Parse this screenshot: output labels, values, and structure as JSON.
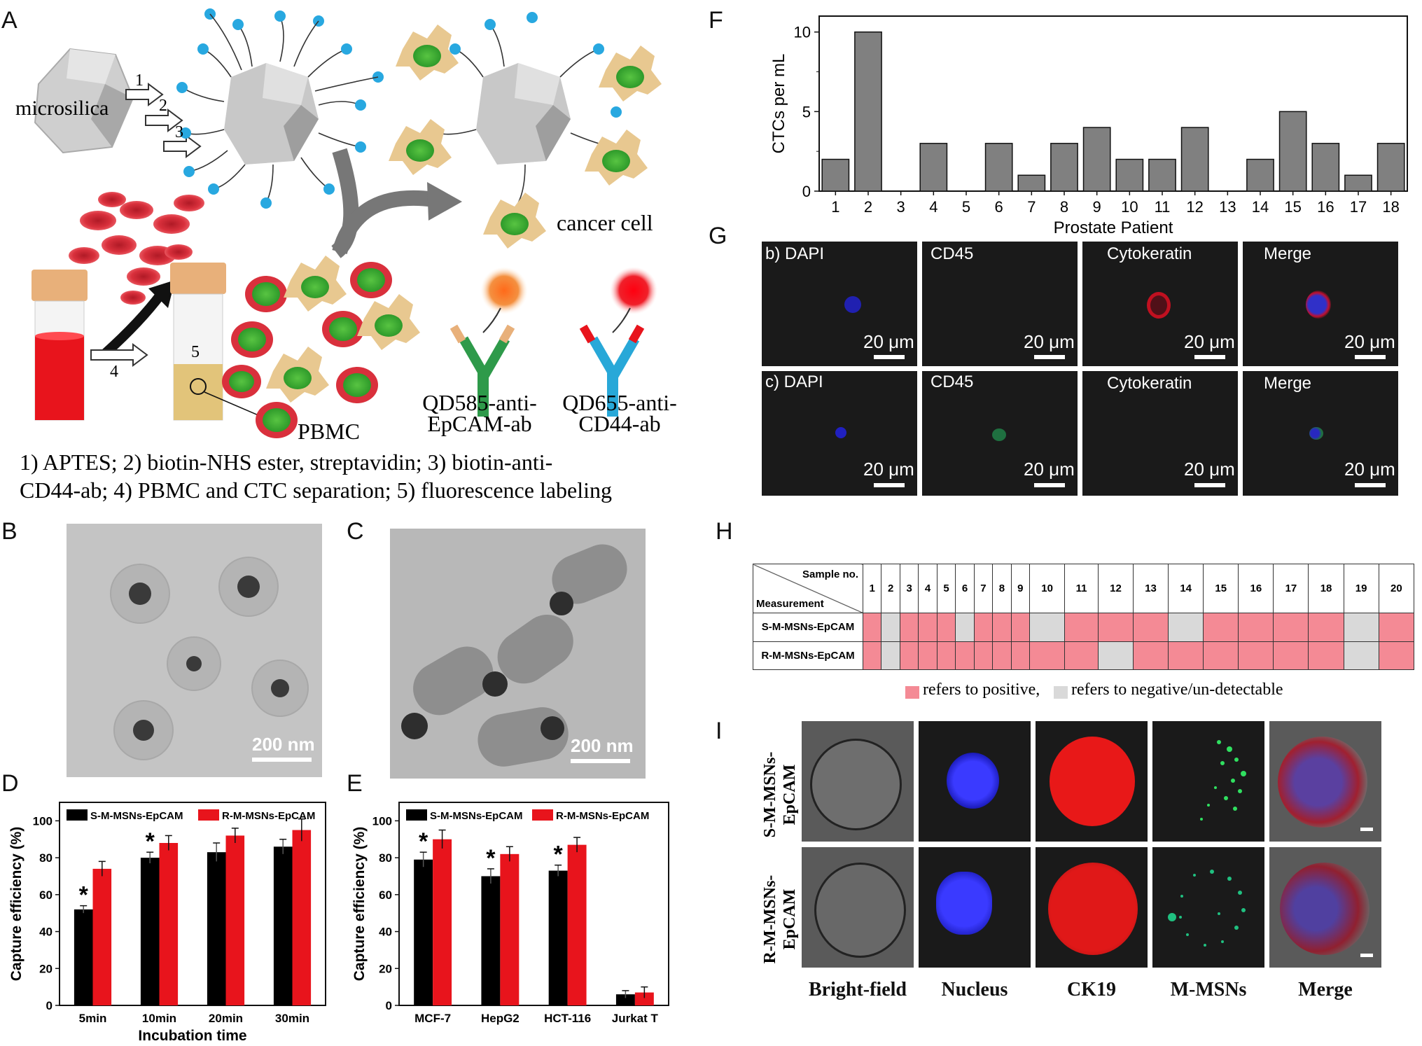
{
  "panel_letters": {
    "A": "A",
    "B": "B",
    "C": "C",
    "D": "D",
    "E": "E",
    "F": "F",
    "G": "G",
    "H": "H",
    "I": "I"
  },
  "panelA": {
    "microsilica": "microsilica",
    "step1": "1",
    "step2": "2",
    "step3": "3",
    "step4": "4",
    "step5": "5",
    "cancer_cell": "cancer cell",
    "pbmc": "PBMC",
    "qd585_line1": "QD585-anti-",
    "qd585_line2": "EpCAM-ab",
    "qd655_line1": "QD655-anti-",
    "qd655_line2": "CD44-ab",
    "caption_line1": "1) APTES; 2) biotin-NHS ester, streptavidin; 3) biotin-anti-",
    "caption_line2": "CD44-ab; 4) PBMC and CTC separation; 5) fluorescence labeling"
  },
  "panelB": {
    "scale": "200 nm"
  },
  "panelC": {
    "scale": "200 nm"
  },
  "panelG": {
    "row_b": [
      "b) DAPI",
      "CD45",
      "Cytokeratin",
      "Merge"
    ],
    "row_c": [
      "c) DAPI",
      "CD45",
      "Cytokeratin",
      "Merge"
    ],
    "scale": "20 μm"
  },
  "panelH": {
    "header_sample": "Sample no.",
    "header_measurement": "Measurement",
    "samples": [
      "1",
      "2",
      "3",
      "4",
      "5",
      "6",
      "7",
      "8",
      "9",
      "10",
      "11",
      "12",
      "13",
      "14",
      "15",
      "16",
      "17",
      "18",
      "19",
      "20"
    ],
    "rows": [
      {
        "label": "S-M-MSNs-EpCAM",
        "values": [
          "pos",
          "neg",
          "pos",
          "pos",
          "pos",
          "neg",
          "pos",
          "pos",
          "pos",
          "neg",
          "pos",
          "pos",
          "pos",
          "neg",
          "pos",
          "pos",
          "pos",
          "pos",
          "neg",
          "pos"
        ]
      },
      {
        "label": "R-M-MSNs-EpCAM",
        "values": [
          "pos",
          "neg",
          "pos",
          "pos",
          "pos",
          "pos",
          "pos",
          "pos",
          "pos",
          "pos",
          "pos",
          "neg",
          "pos",
          "pos",
          "pos",
          "pos",
          "pos",
          "pos",
          "neg",
          "pos"
        ]
      }
    ],
    "legend_pos": "refers to positive,",
    "legend_neg": "refers to negative/un-detectable",
    "colors": {
      "pos": "#f48a95",
      "neg": "#d9d9d9"
    }
  },
  "panelI": {
    "row1_line1": "S-M-MSNs-",
    "row1_line2": "EpCAM",
    "row2_line1": "R-M-MSNs-",
    "row2_line2": "EpCAM",
    "columns": [
      "Bright-field",
      "Nucleus",
      "CK19",
      "M-MSNs",
      "Merge"
    ]
  },
  "chart_data": [
    {
      "id": "F",
      "type": "bar",
      "categories": [
        "1",
        "2",
        "3",
        "4",
        "5",
        "6",
        "7",
        "8",
        "9",
        "10",
        "11",
        "12",
        "13",
        "14",
        "15",
        "16",
        "17",
        "18"
      ],
      "values": [
        2,
        10,
        0,
        3,
        0,
        3,
        1,
        3,
        4,
        2,
        2,
        4,
        0,
        2,
        5,
        3,
        1,
        3
      ],
      "xlabel": "Prostate Patient",
      "ylabel": "CTCs per mL",
      "ylim": [
        0,
        11
      ],
      "yticks": [
        0,
        5,
        10
      ],
      "color": "#808080"
    },
    {
      "id": "D",
      "type": "bar",
      "categories": [
        "5min",
        "10min",
        "20min",
        "30min"
      ],
      "series": [
        {
          "name": "S-M-MSNs-EpCAM",
          "values": [
            52,
            80,
            83,
            86
          ],
          "errors": [
            2,
            3,
            5,
            4
          ],
          "color": "#000000"
        },
        {
          "name": "R-M-MSNs-EpCAM",
          "values": [
            74,
            88,
            92,
            95
          ],
          "errors": [
            4,
            4,
            4,
            6
          ],
          "color": "#e8141c"
        }
      ],
      "stars": [
        "*",
        "*",
        "",
        ""
      ],
      "xlabel": "Incubation time",
      "ylabel": "Capture efficiency (%)",
      "ylim": [
        0,
        110
      ],
      "yticks": [
        0,
        20,
        40,
        60,
        80,
        100
      ],
      "legend": "top"
    },
    {
      "id": "E",
      "type": "bar",
      "categories": [
        "MCF-7",
        "HepG2",
        "HCT-116",
        "Jurkat T"
      ],
      "series": [
        {
          "name": "S-M-MSNs-EpCAM",
          "values": [
            79,
            70,
            73,
            6
          ],
          "errors": [
            4,
            4,
            3,
            2
          ],
          "color": "#000000"
        },
        {
          "name": "R-M-MSNs-EpCAM",
          "values": [
            90,
            82,
            87,
            7
          ],
          "errors": [
            5,
            4,
            4,
            3
          ],
          "color": "#e8141c"
        }
      ],
      "stars": [
        "*",
        "*",
        "*",
        ""
      ],
      "xlabel": "",
      "ylabel": "Capture efficiency (%)",
      "ylim": [
        0,
        110
      ],
      "yticks": [
        0,
        20,
        40,
        60,
        80,
        100
      ],
      "legend": "top"
    }
  ]
}
